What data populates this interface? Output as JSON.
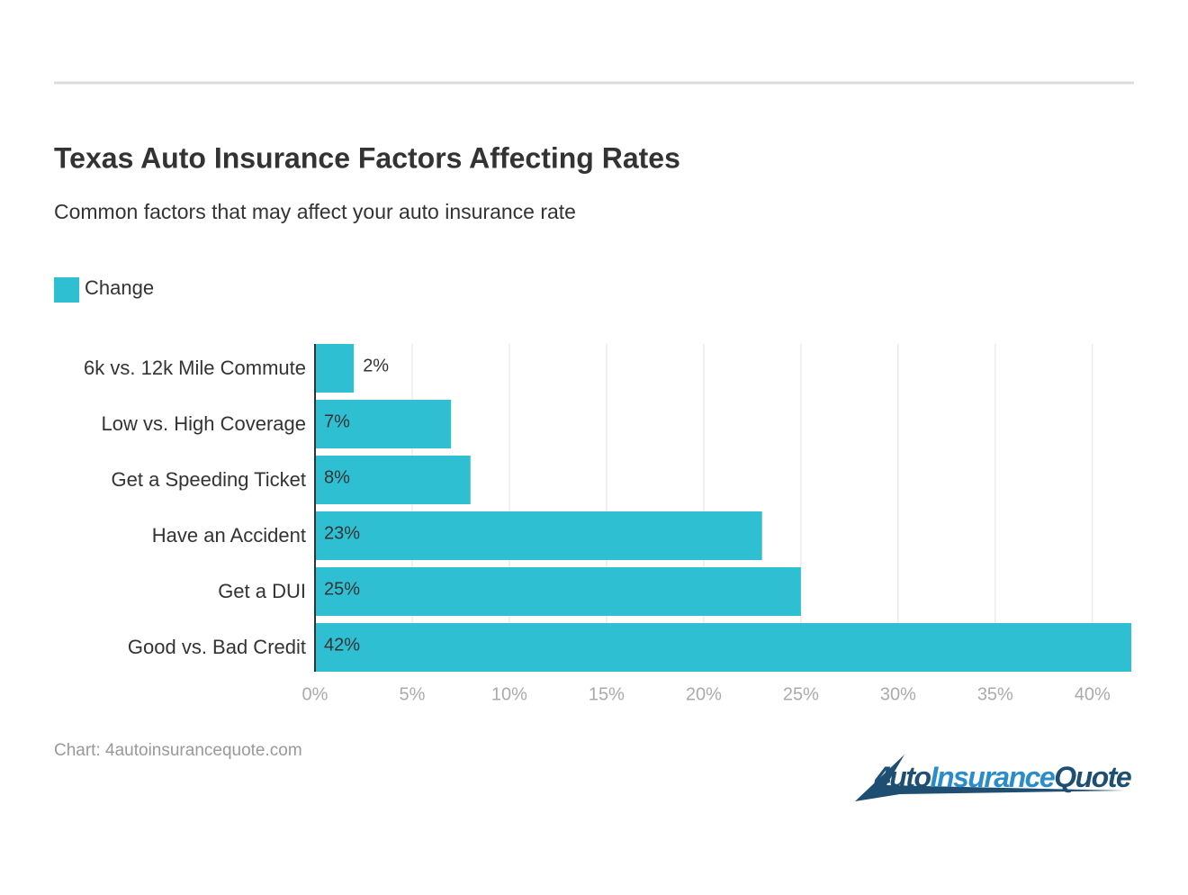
{
  "chart_data": {
    "type": "hbar",
    "title": "Texas Auto Insurance Factors Affecting Rates",
    "subtitle": "Common factors that may affect your auto insurance rate",
    "categories": [
      "6k vs. 12k Mile Commute",
      "Low vs. High Coverage",
      "Get a Speeding Ticket",
      "Have an Accident",
      "Get a DUI",
      "Good vs. Bad Credit"
    ],
    "series": [
      {
        "name": "Change",
        "color": "#2ebfd3",
        "values": [
          2,
          7,
          8,
          23,
          25,
          42
        ],
        "value_labels": [
          "2%",
          "7%",
          "8%",
          "23%",
          "25%",
          "42%"
        ]
      }
    ],
    "xlim": [
      0,
      42
    ],
    "xticks": [
      {
        "value": 0,
        "label": "0%"
      },
      {
        "value": 5,
        "label": "5%"
      },
      {
        "value": 10,
        "label": "10%"
      },
      {
        "value": 15,
        "label": "15%"
      },
      {
        "value": 20,
        "label": "20%"
      },
      {
        "value": 25,
        "label": "25%"
      },
      {
        "value": 30,
        "label": "30%"
      },
      {
        "value": 35,
        "label": "35%"
      },
      {
        "value": 40,
        "label": "40%"
      }
    ],
    "grid": true,
    "legend": "top-left",
    "source": "Chart: 4autoinsurancequote.com"
  },
  "logo": {
    "parts": [
      "4uto",
      "Insurance",
      "Quote"
    ]
  }
}
